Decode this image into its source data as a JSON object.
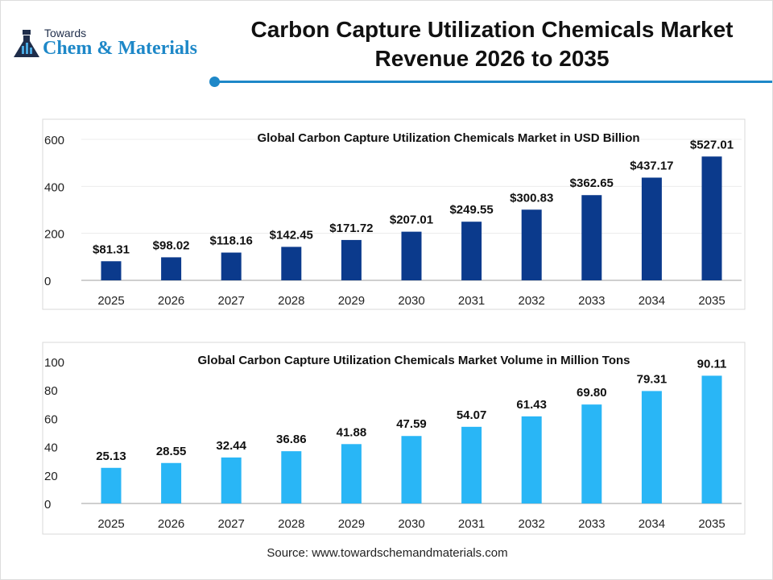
{
  "header": {
    "logo_top": "Towards",
    "logo_main": "Chem & Materials",
    "title_line1": "Carbon Capture Utilization Chemicals Market",
    "title_line2": "Revenue 2026 to 2035"
  },
  "source": "Source: www.towardschemandmaterials.com",
  "chart_data": [
    {
      "type": "bar",
      "title": "Global Carbon Capture Utilization Chemicals Market in USD Billion",
      "categories": [
        "2025",
        "2026",
        "2027",
        "2028",
        "2029",
        "2030",
        "2031",
        "2032",
        "2033",
        "2034",
        "2035"
      ],
      "values": [
        81.31,
        98.02,
        118.16,
        142.45,
        171.72,
        207.01,
        249.55,
        300.83,
        362.65,
        437.17,
        527.01
      ],
      "labels": [
        "$81.31",
        "$98.02",
        "$118.16",
        "$142.45",
        "$171.72",
        "$207.01",
        "$249.55",
        "$300.83",
        "$362.65",
        "$437.17",
        "$527.01"
      ],
      "ylim": [
        0,
        600
      ],
      "yticks": [
        "0",
        "200",
        "400",
        "600"
      ],
      "color": "#0B3A8C",
      "grid": true
    },
    {
      "type": "bar",
      "title": "Global Carbon Capture Utilization Chemicals Market Volume in Million Tons",
      "categories": [
        "2025",
        "2026",
        "2027",
        "2028",
        "2029",
        "2030",
        "2031",
        "2032",
        "2033",
        "2034",
        "2035"
      ],
      "values": [
        25.13,
        28.55,
        32.44,
        36.86,
        41.88,
        47.59,
        54.07,
        61.43,
        69.8,
        79.31,
        90.11
      ],
      "labels": [
        "25.13",
        "28.55",
        "32.44",
        "36.86",
        "41.88",
        "47.59",
        "54.07",
        "61.43",
        "69.80",
        "79.31",
        "90.11"
      ],
      "ylim": [
        0,
        100
      ],
      "yticks": [
        "0",
        "20",
        "40",
        "60",
        "80",
        "100"
      ],
      "color": "#29B6F6",
      "grid": false
    }
  ]
}
